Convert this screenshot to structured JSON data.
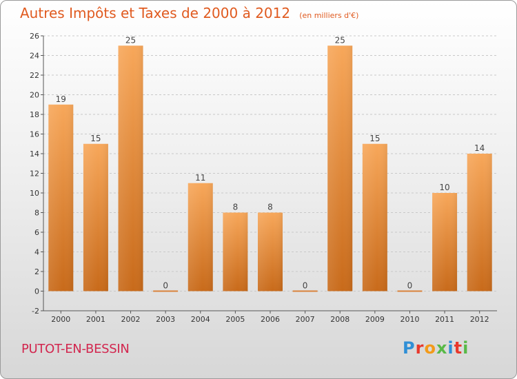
{
  "title": "Autres Impôts et Taxes de 2000 à 2012",
  "subtitle": "(en milliers d'€)",
  "commune": "PUTOT-EN-BESSIN",
  "logo_text": "Proxiti",
  "colors": {
    "title": "#e05a1f",
    "commune": "#d2264e",
    "bar_light": "#f7a75a",
    "bar_dark": "#c86a1a",
    "grid": "#c8c8c8"
  },
  "chart_data": {
    "type": "bar",
    "title": "Autres Impôts et Taxes de 2000 à 2012",
    "subtitle": "(en milliers d'€)",
    "categories": [
      "2000",
      "2001",
      "2002",
      "2003",
      "2004",
      "2005",
      "2006",
      "2007",
      "2008",
      "2009",
      "2010",
      "2011",
      "2012"
    ],
    "values": [
      19,
      15,
      25,
      0,
      11,
      8,
      8,
      0,
      25,
      15,
      0,
      10,
      14
    ],
    "ylim": [
      -2,
      26
    ],
    "yticks": [
      -2,
      0,
      2,
      4,
      6,
      8,
      10,
      12,
      14,
      16,
      18,
      20,
      22,
      24,
      26
    ],
    "grid": true,
    "xlabel": "",
    "ylabel": ""
  }
}
